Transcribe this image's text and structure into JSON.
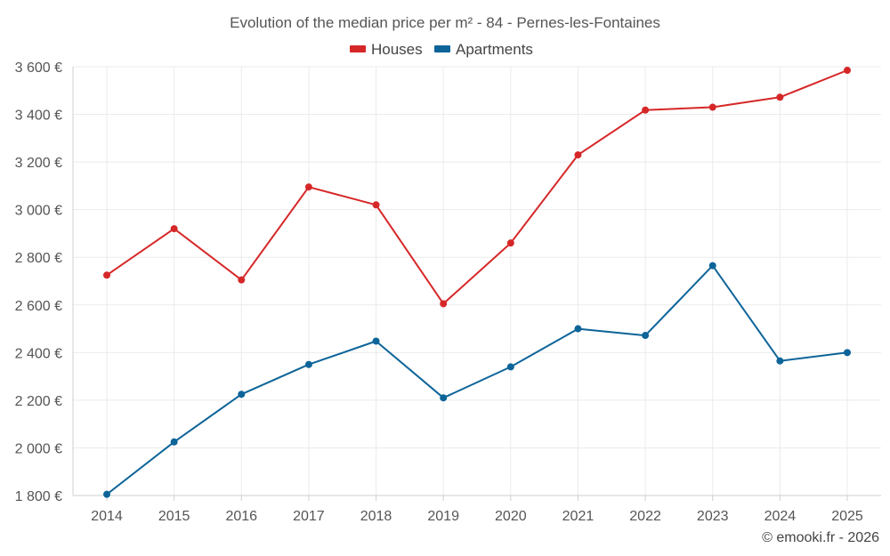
{
  "chart_data": {
    "type": "line",
    "title": "Evolution of the median price per m² - 84 - Pernes-les-Fontaines",
    "xlabel": "",
    "ylabel": "",
    "categories": [
      "2014",
      "2015",
      "2016",
      "2017",
      "2018",
      "2019",
      "2020",
      "2021",
      "2022",
      "2023",
      "2024",
      "2025"
    ],
    "series": [
      {
        "name": "Houses",
        "color": "#d62728",
        "values": [
          2725,
          2920,
          2705,
          3095,
          3020,
          2605,
          2860,
          3230,
          3418,
          3430,
          3472,
          3585
        ]
      },
      {
        "name": "Apartments",
        "color": "#0d6499",
        "values": [
          1805,
          2025,
          2225,
          2350,
          2448,
          2210,
          2340,
          2500,
          2472,
          2765,
          2365,
          2400
        ]
      }
    ],
    "ylim": [
      1800,
      3600
    ],
    "yticks": [
      1800,
      2000,
      2200,
      2400,
      2600,
      2800,
      3000,
      3200,
      3400,
      3600
    ],
    "ytick_labels": [
      "1 800 €",
      "2 000 €",
      "2 200 €",
      "2 400 €",
      "2 600 €",
      "2 800 €",
      "3 000 €",
      "3 200 €",
      "3 400 €",
      "3 600 €"
    ],
    "legend_position": "top-center",
    "grid": true
  },
  "credit": "© emooki.fr - 2026"
}
